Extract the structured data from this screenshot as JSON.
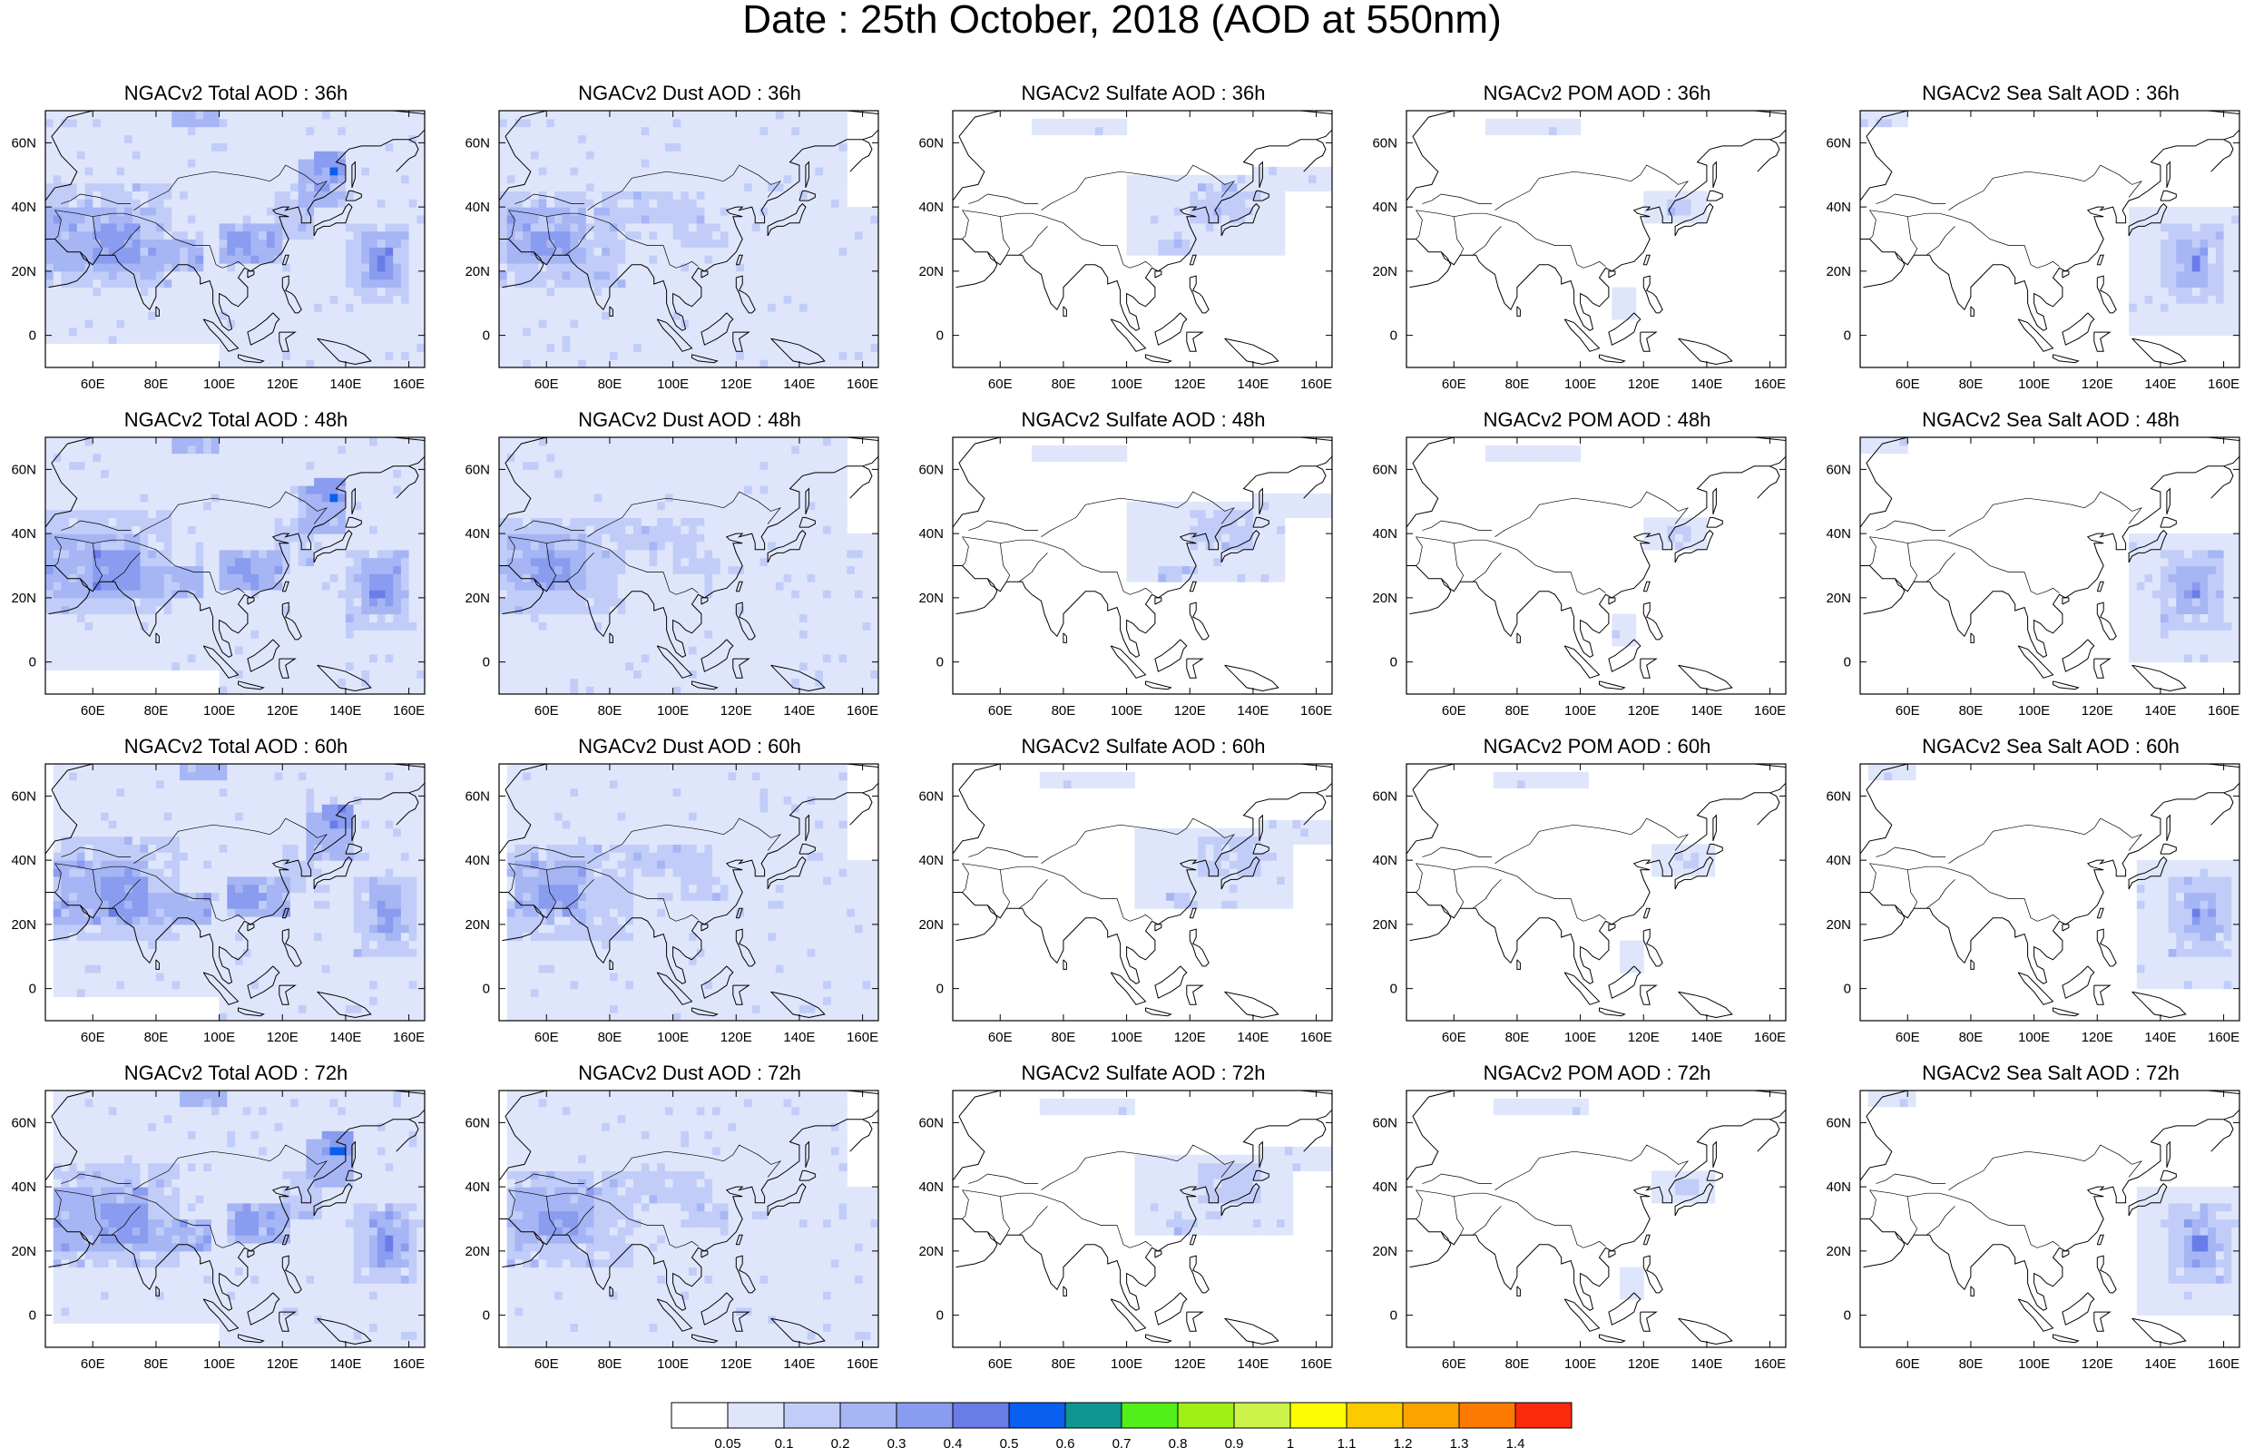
{
  "title": "Date : 25th October, 2018 (AOD at 550nm)",
  "lon_ticks": [
    "60E",
    "80E",
    "100E",
    "120E",
    "140E",
    "160E"
  ],
  "lat_ticks": [
    "60N",
    "40N",
    "20N",
    "0"
  ],
  "map_extent": {
    "lon": [
      45,
      165
    ],
    "lat": [
      -10,
      70
    ]
  },
  "panels": [
    [
      {
        "title": "NGACv2 Total AOD : 36h",
        "species": "total",
        "hour": 36
      },
      {
        "title": "NGACv2 Dust AOD : 36h",
        "species": "dust",
        "hour": 36
      },
      {
        "title": "NGACv2 Sulfate AOD : 36h",
        "species": "sulfate",
        "hour": 36
      },
      {
        "title": "NGACv2 POM AOD : 36h",
        "species": "pom",
        "hour": 36
      },
      {
        "title": "NGACv2 Sea Salt AOD : 36h",
        "species": "seasalt",
        "hour": 36
      }
    ],
    [
      {
        "title": "NGACv2 Total AOD : 48h",
        "species": "total",
        "hour": 48
      },
      {
        "title": "NGACv2 Dust AOD : 48h",
        "species": "dust",
        "hour": 48
      },
      {
        "title": "NGACv2 Sulfate AOD : 48h",
        "species": "sulfate",
        "hour": 48
      },
      {
        "title": "NGACv2 POM AOD : 48h",
        "species": "pom",
        "hour": 48
      },
      {
        "title": "NGACv2 Sea Salt AOD : 48h",
        "species": "seasalt",
        "hour": 48
      }
    ],
    [
      {
        "title": "NGACv2 Total AOD : 60h",
        "species": "total",
        "hour": 60
      },
      {
        "title": "NGACv2 Dust AOD : 60h",
        "species": "dust",
        "hour": 60
      },
      {
        "title": "NGACv2 Sulfate AOD : 60h",
        "species": "sulfate",
        "hour": 60
      },
      {
        "title": "NGACv2 POM AOD : 60h",
        "species": "pom",
        "hour": 60
      },
      {
        "title": "NGACv2 Sea Salt AOD : 60h",
        "species": "seasalt",
        "hour": 60
      }
    ],
    [
      {
        "title": "NGACv2 Total AOD : 72h",
        "species": "total",
        "hour": 72
      },
      {
        "title": "NGACv2 Dust AOD : 72h",
        "species": "dust",
        "hour": 72
      },
      {
        "title": "NGACv2 Sulfate AOD : 72h",
        "species": "sulfate",
        "hour": 72
      },
      {
        "title": "NGACv2 POM AOD : 72h",
        "species": "pom",
        "hour": 72
      },
      {
        "title": "NGACv2 Sea Salt  AOD : 72h",
        "species": "seasalt",
        "hour": 72
      }
    ]
  ],
  "colorbar": {
    "labels": [
      "0.05",
      "0.1",
      "0.2",
      "0.3",
      "0.4",
      "0.5",
      "0.6",
      "0.7",
      "0.8",
      "0.9",
      "1",
      "1.1",
      "1.2",
      "1.3",
      "1.4"
    ],
    "colors": [
      "#ffffff",
      "#dfe6fb",
      "#c1cdf8",
      "#a6b5f4",
      "#8a9cef",
      "#6a7ce8",
      "#0a5ef0",
      "#0f9690",
      "#52ef1a",
      "#9ef015",
      "#cdf24a",
      "#fcfd04",
      "#fdc900",
      "#fda300",
      "#fd7a00",
      "#fb2a0a"
    ]
  }
}
